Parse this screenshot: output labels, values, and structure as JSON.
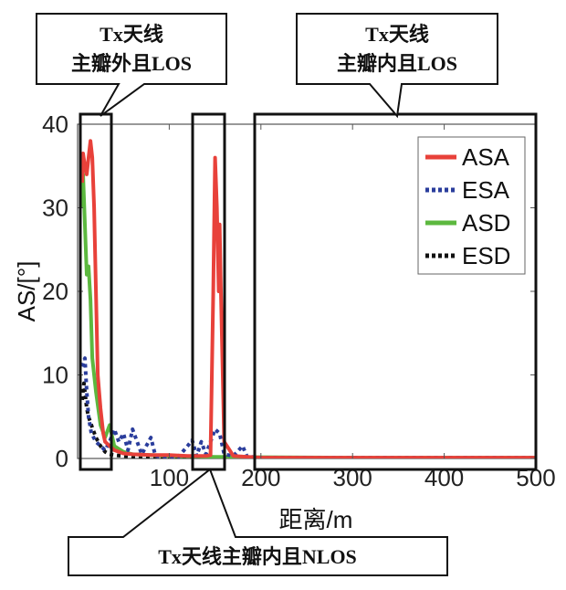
{
  "chart_data": {
    "type": "line",
    "xlabel": "距离/m",
    "ylabel": "AS/[°]",
    "xlim": [
      0,
      500
    ],
    "ylim": [
      0,
      40
    ],
    "xticks": [
      100,
      200,
      300,
      400,
      500
    ],
    "xtick_labels": [
      "100",
      "200",
      "300",
      "400",
      "500"
    ],
    "yticks": [
      0,
      10,
      20,
      30,
      40
    ],
    "ytick_labels": [
      "0",
      "10",
      "20",
      "30",
      "40"
    ],
    "grid": false,
    "legend_position": "top-right",
    "series": [
      {
        "name": "ASA",
        "color": "#e8413a",
        "style": "solid",
        "x": [
          5,
          6,
          8,
          10,
          12,
          14,
          16,
          18,
          20,
          22,
          25,
          28,
          30,
          35,
          40,
          50,
          60,
          80,
          100,
          120,
          140,
          145,
          148,
          150,
          152,
          154,
          155,
          156,
          158,
          160,
          170,
          200,
          250,
          300,
          400,
          500
        ],
        "y": [
          33,
          36.5,
          35,
          34,
          36,
          38,
          36,
          30,
          20,
          10,
          6,
          3,
          2,
          1.5,
          1,
          0.6,
          0.5,
          0.4,
          0.4,
          0.3,
          0.3,
          0.4,
          20,
          36,
          30,
          20,
          28,
          22,
          12,
          2,
          0.3,
          0.1,
          0.1,
          0.1,
          0.1,
          0.1
        ]
      },
      {
        "name": "ESA",
        "color": "#2a3d9c",
        "style": "dotted",
        "x": [
          5,
          8,
          10,
          12,
          15,
          20,
          25,
          30,
          35,
          40,
          45,
          50,
          55,
          60,
          70,
          80,
          85,
          90,
          100,
          110,
          120,
          125,
          130,
          135,
          140,
          145,
          150,
          155,
          160,
          170,
          180,
          185,
          190,
          200,
          250,
          300,
          400,
          500
        ],
        "y": [
          11,
          12,
          8,
          5,
          3,
          2,
          1.5,
          1,
          2,
          3.5,
          2,
          3,
          1,
          3.5,
          0.5,
          2.5,
          0.3,
          0.2,
          0.2,
          0.2,
          1.5,
          2.2,
          0.3,
          2,
          0.5,
          2,
          3.5,
          3,
          0.5,
          0.3,
          1.5,
          0.2,
          0.2,
          0.1,
          0.1,
          0.1,
          0.1,
          0.1
        ]
      },
      {
        "name": "ASD",
        "color": "#5cb83f",
        "style": "solid",
        "x": [
          5,
          6,
          8,
          10,
          12,
          14,
          16,
          20,
          25,
          30,
          35,
          40,
          50,
          60,
          80,
          100,
          150,
          200,
          300,
          400,
          500
        ],
        "y": [
          30,
          34,
          28,
          22,
          23,
          19,
          12,
          8,
          4,
          2.5,
          4,
          1.5,
          0.8,
          0.5,
          0.4,
          0.3,
          0.2,
          0.15,
          0.1,
          0.1,
          0.1
        ]
      },
      {
        "name": "ESD",
        "color": "#111111",
        "style": "dotted",
        "x": [
          5,
          7,
          8,
          10,
          12,
          15,
          20,
          25,
          30,
          35,
          40,
          50,
          60,
          80,
          100,
          150,
          200,
          300,
          400,
          500
        ],
        "y": [
          7,
          9,
          8,
          6,
          5,
          4,
          2.5,
          1.5,
          0.8,
          0.5,
          0.4,
          0.3,
          0.2,
          0.15,
          0.1,
          0.1,
          0.1,
          0.05,
          0.05,
          0.05
        ]
      }
    ],
    "annotations": [
      {
        "text_lines": [
          "Tx天线",
          "主瓣外且LOS"
        ],
        "x_range": [
          0,
          40
        ]
      },
      {
        "text_lines": [
          "Tx天线",
          "主瓣内且LOS"
        ],
        "x_range": [
          200,
          500
        ]
      },
      {
        "text_lines": [
          "Tx天线主瓣内且NLOS"
        ],
        "x_range": [
          130,
          170
        ]
      }
    ]
  }
}
